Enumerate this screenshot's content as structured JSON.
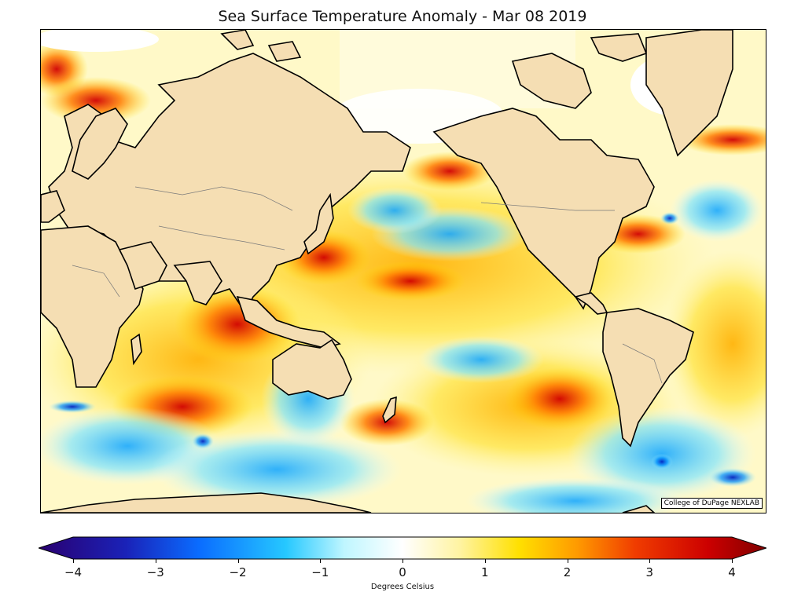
{
  "title": "Sea Surface Temperature Anomaly - Mar 08 2019",
  "credit": "College of DuPage NEXLAB",
  "colorbar": {
    "label": "Degrees Celsius",
    "min": -4,
    "max": 4,
    "ticks": [
      "−4",
      "−3",
      "−2",
      "−1",
      "0",
      "1",
      "2",
      "3",
      "4"
    ],
    "colors": [
      "#2a0070",
      "#0020c0",
      "#0078ff",
      "#22c4ff",
      "#e8fbff",
      "#ffffff",
      "#fff59a",
      "#ffe000",
      "#ffa000",
      "#f04000",
      "#d00000",
      "#8a0000"
    ]
  },
  "land_color": "#f5deb3",
  "projection": "Mercator, Pacific-centered"
}
